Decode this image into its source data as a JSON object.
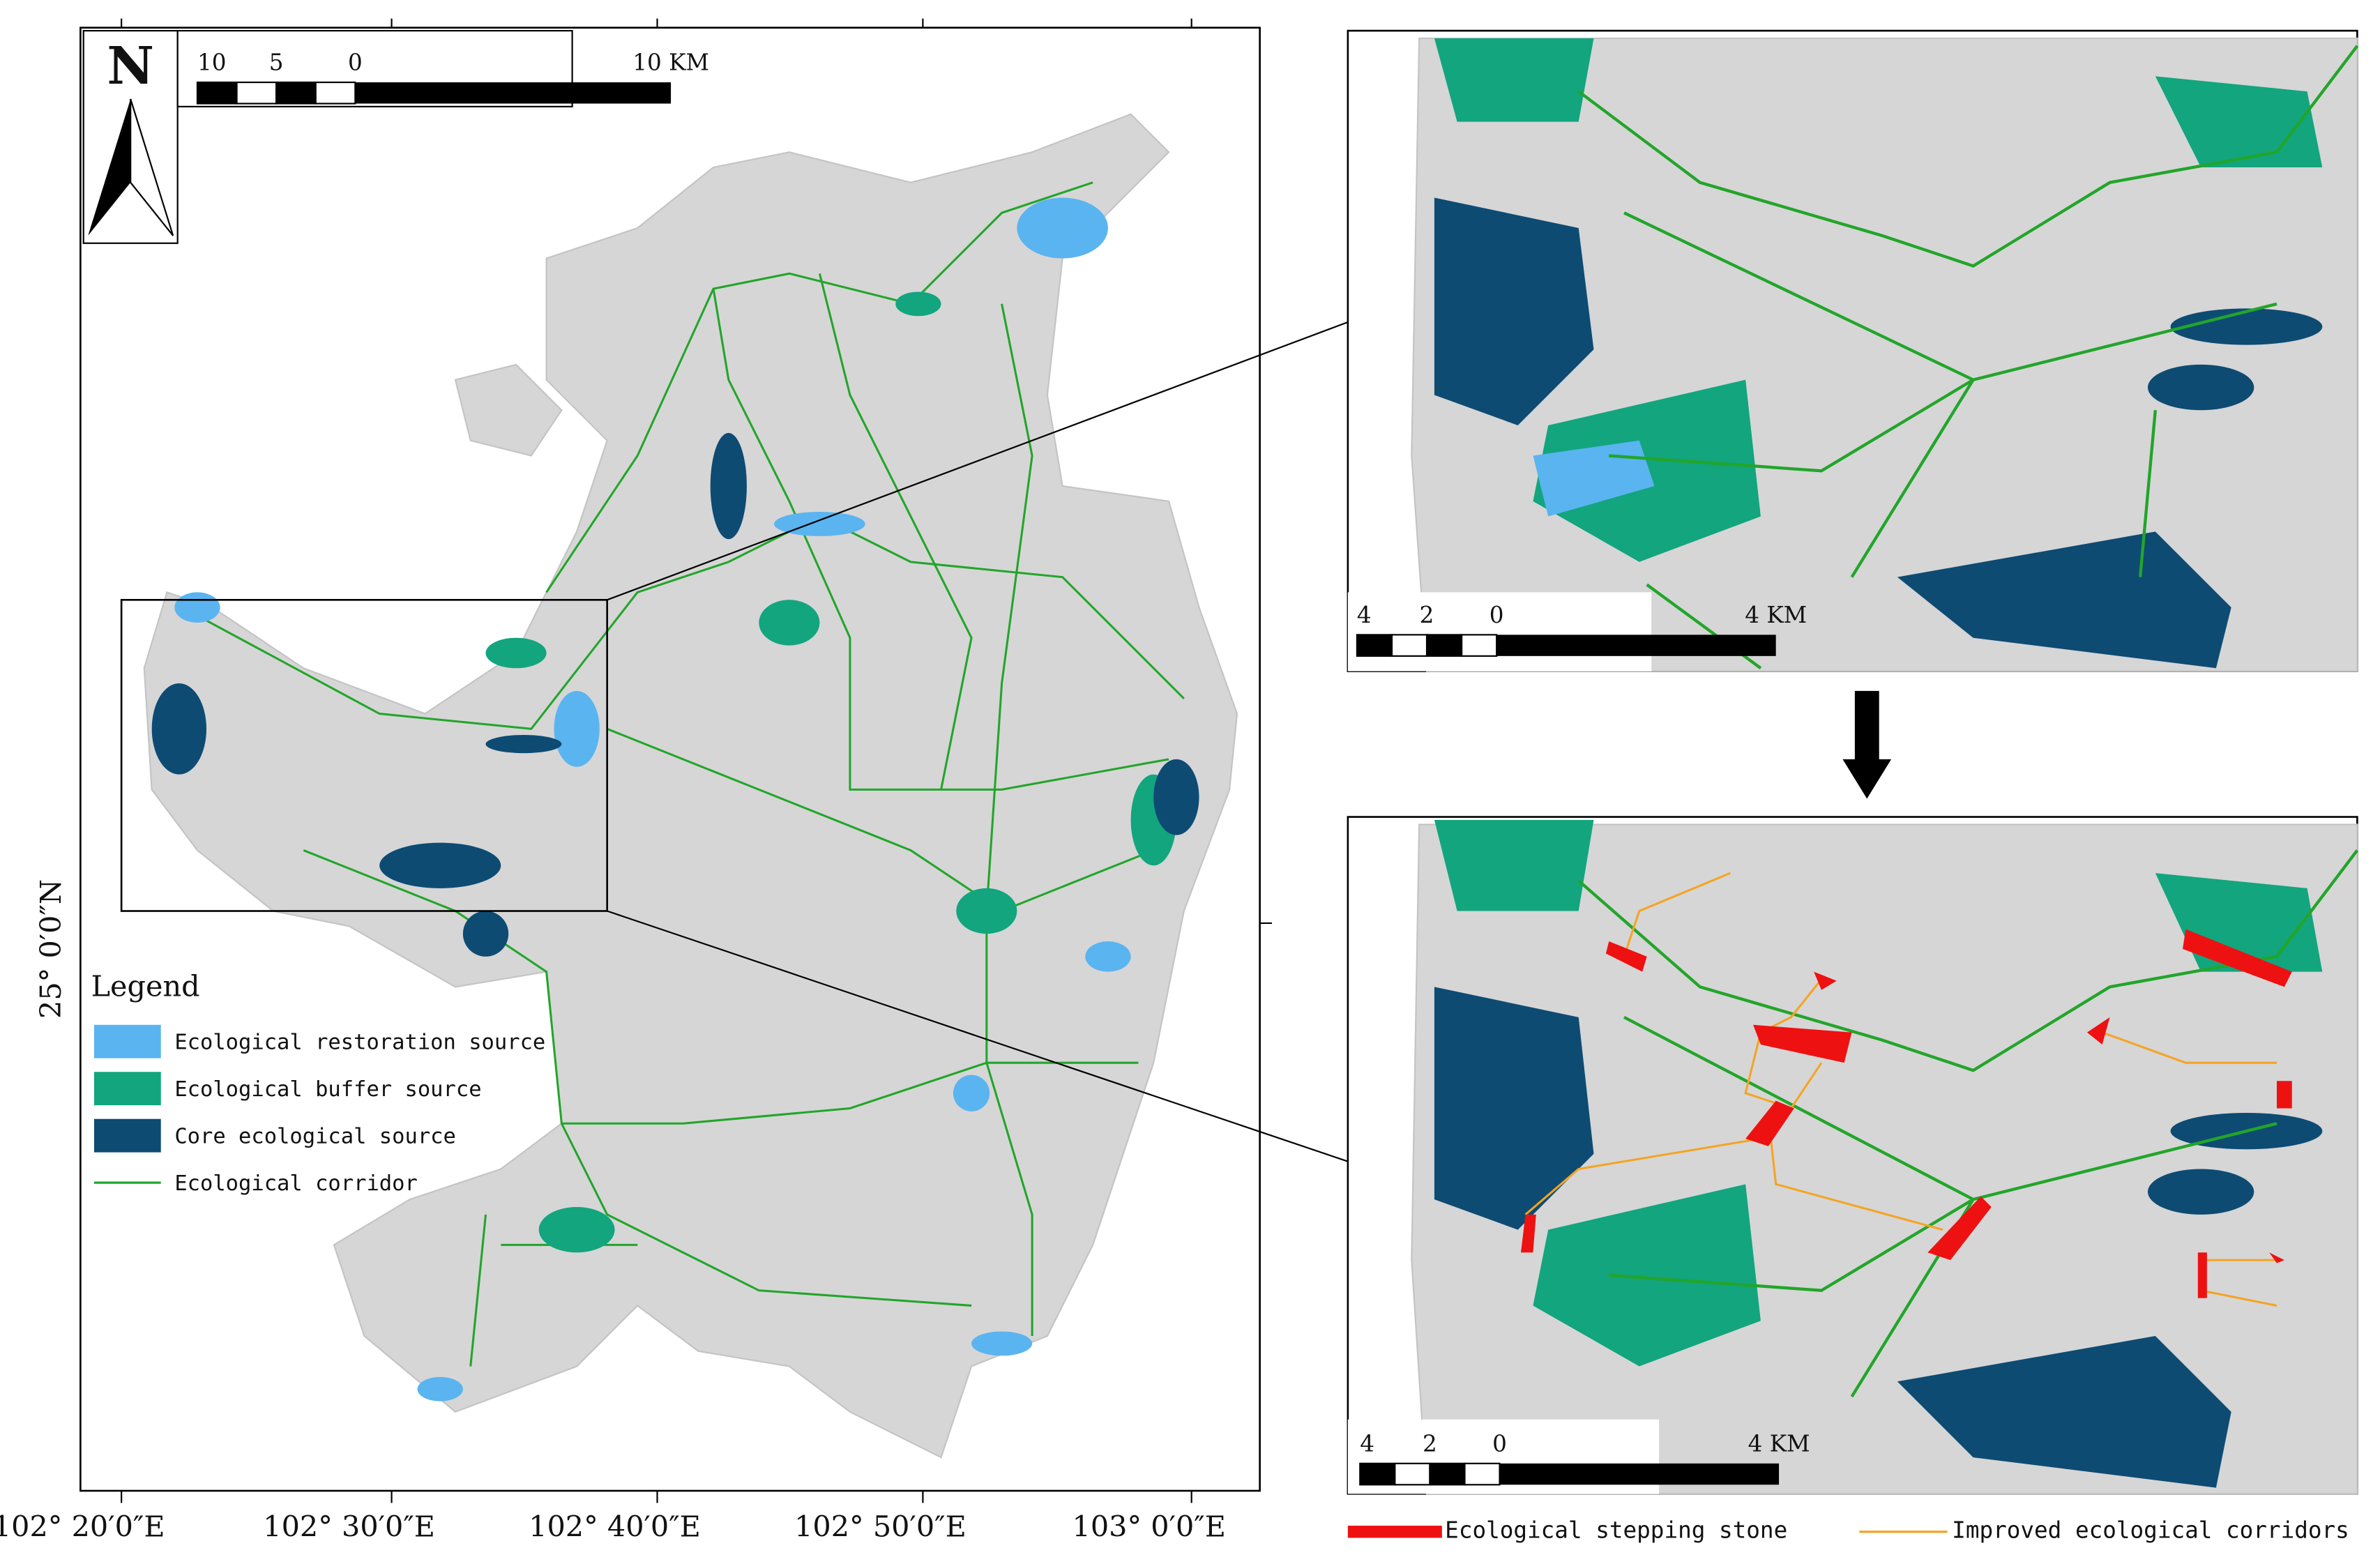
{
  "main_map": {
    "north_label": "N",
    "scale_bar": {
      "labels": [
        "10",
        "5",
        "0",
        "10 KM"
      ]
    },
    "x_ticks": [
      "102° 20′0″E",
      "102° 30′0″E",
      "102° 40′0″E",
      "102° 50′0″E",
      "103° 0′0″E"
    ],
    "y_ticks": [
      "25° 0′0″N"
    ],
    "legend": {
      "title": "Legend",
      "items": [
        "Ecological restoration source",
        "Ecological buffer source",
        "Core ecological source",
        "Ecological corridor"
      ]
    }
  },
  "inset_top": {
    "scale_bar": {
      "labels": [
        "4",
        "2",
        "0",
        "4 KM"
      ]
    }
  },
  "inset_bottom": {
    "scale_bar": {
      "labels": [
        "4",
        "2",
        "0",
        "4 KM"
      ]
    }
  },
  "bottom_legend": {
    "items": [
      "Ecological stepping stone",
      "Improved ecological corridors"
    ]
  }
}
